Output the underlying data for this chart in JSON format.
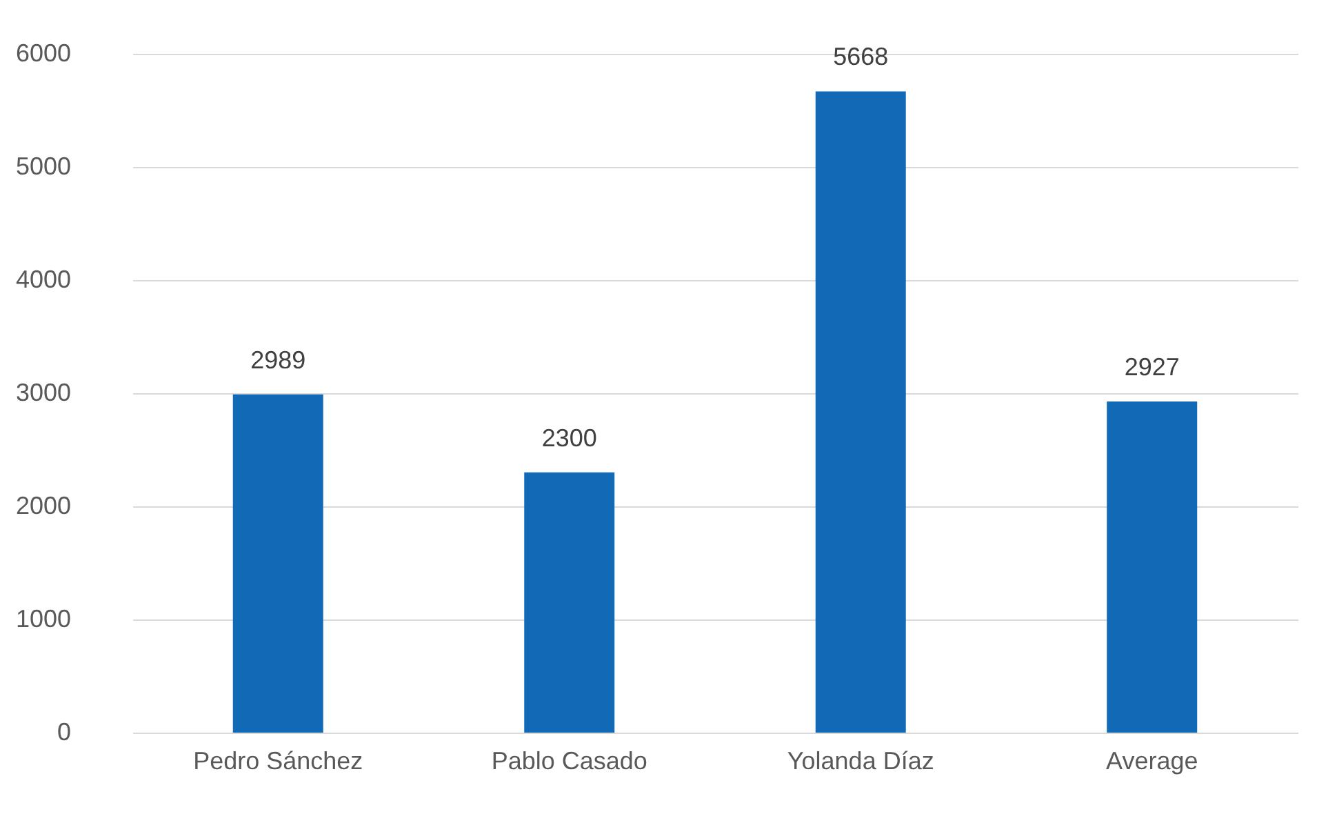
{
  "chart_data": {
    "type": "bar",
    "categories": [
      "Pedro Sánchez",
      "Pablo Casado",
      "Yolanda Díaz",
      "Average"
    ],
    "values": [
      2989,
      2300,
      5668,
      2927
    ],
    "color": "#126ab7",
    "ylim": [
      0,
      6000
    ],
    "yticks": [
      0,
      1000,
      2000,
      3000,
      4000,
      5000,
      6000
    ],
    "grid": "y",
    "data_labels": true
  }
}
